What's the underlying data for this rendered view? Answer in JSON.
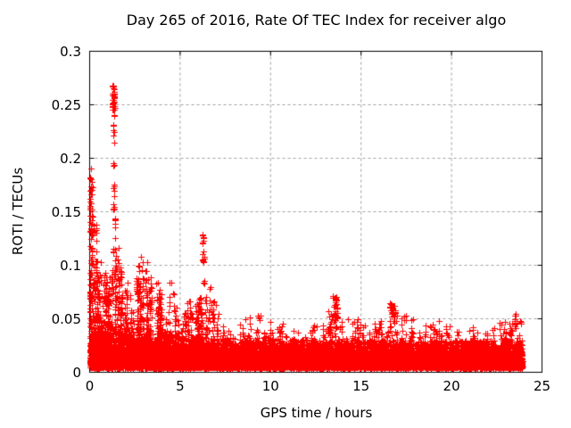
{
  "chart_data": {
    "type": "scatter",
    "title": "Day 265 of 2016, Rate Of TEC Index for receiver algo",
    "xlabel": "GPS time / hours",
    "ylabel": "ROTI / TECUs",
    "xlim": [
      0,
      25
    ],
    "ylim": [
      0,
      0.3
    ],
    "xticks": [
      0,
      5,
      10,
      15,
      20,
      25
    ],
    "xtick_labels": [
      "0",
      "5",
      "10",
      "15",
      "20",
      "25"
    ],
    "yticks": [
      0,
      0.05,
      0.1,
      0.15,
      0.2,
      0.25,
      0.3
    ],
    "ytick_labels": [
      "0",
      "0.05",
      "0.1",
      "0.15",
      "0.2",
      "0.25",
      "0.3"
    ],
    "grid": true,
    "legend": "none",
    "marker": "plus",
    "marker_size_px": 7,
    "colors": {
      "marker": "#ff0000",
      "grid": "#a0a0a0",
      "axis": "#000000",
      "text": "#000000",
      "background": "#ffffff"
    },
    "time_range_hours": [
      0,
      23.92
    ],
    "y_max_observed": 0.267,
    "seed": 1337,
    "n_background_points": 13500,
    "background_floor": {
      "y_min": 0.004,
      "mean_base": 0.0085,
      "mean_extra": 0.0075,
      "mean_decay_h": 2.5,
      "cap_base": 0.03,
      "cap_extra": 0.025,
      "cap_decay_h": 3
    },
    "spike_texture": {
      "bin_hours": 0.3,
      "probability": 0.9,
      "second_spike_probability": 0.5,
      "high_env_threshold": 0.07,
      "high_env_extra_probability": 0.85,
      "min_height_frac": 0.5,
      "points_per_unit": 300,
      "y_base": 0.015,
      "x_jitter": 0.05
    },
    "upper_envelope": [
      [
        0,
        0.2
      ],
      [
        0.15,
        0.2
      ],
      [
        0.3,
        0.16
      ],
      [
        0.6,
        0.11
      ],
      [
        0.8,
        0.095
      ],
      [
        1.0,
        0.1
      ],
      [
        1.2,
        0.12
      ],
      [
        1.5,
        0.12
      ],
      [
        1.7,
        0.115
      ],
      [
        2.0,
        0.105
      ],
      [
        2.3,
        0.09
      ],
      [
        2.6,
        0.1
      ],
      [
        2.9,
        0.11
      ],
      [
        3.1,
        0.115
      ],
      [
        3.3,
        0.1
      ],
      [
        3.6,
        0.085
      ],
      [
        3.9,
        0.095
      ],
      [
        4.2,
        0.09
      ],
      [
        4.5,
        0.105
      ],
      [
        4.8,
        0.09
      ],
      [
        5.1,
        0.085
      ],
      [
        5.4,
        0.08
      ],
      [
        5.7,
        0.072
      ],
      [
        6.0,
        0.07
      ],
      [
        6.4,
        0.095
      ],
      [
        6.7,
        0.08
      ],
      [
        7.0,
        0.065
      ],
      [
        7.4,
        0.055
      ],
      [
        7.8,
        0.048
      ],
      [
        8.2,
        0.045
      ],
      [
        8.6,
        0.05
      ],
      [
        9.0,
        0.055
      ],
      [
        9.5,
        0.055
      ],
      [
        10.0,
        0.05
      ],
      [
        10.5,
        0.045
      ],
      [
        11.0,
        0.047
      ],
      [
        11.5,
        0.045
      ],
      [
        12.0,
        0.048
      ],
      [
        12.5,
        0.052
      ],
      [
        13.0,
        0.055
      ],
      [
        13.4,
        0.06
      ],
      [
        13.8,
        0.055
      ],
      [
        14.2,
        0.055
      ],
      [
        14.6,
        0.05
      ],
      [
        15.0,
        0.05
      ],
      [
        15.5,
        0.052
      ],
      [
        16.0,
        0.052
      ],
      [
        16.5,
        0.06
      ],
      [
        17.0,
        0.058
      ],
      [
        17.5,
        0.052
      ],
      [
        18.0,
        0.05
      ],
      [
        18.5,
        0.052
      ],
      [
        19.0,
        0.052
      ],
      [
        19.5,
        0.047
      ],
      [
        20.0,
        0.05
      ],
      [
        20.5,
        0.048
      ],
      [
        21.0,
        0.047
      ],
      [
        21.5,
        0.044
      ],
      [
        22.0,
        0.042
      ],
      [
        22.5,
        0.044
      ],
      [
        23.0,
        0.05
      ],
      [
        23.5,
        0.052
      ],
      [
        23.92,
        0.05
      ]
    ],
    "outlier_clusters": [
      {
        "t": 0.1,
        "w": 0.15,
        "y_min": 0.1,
        "y_max": 0.2,
        "n": 22
      },
      {
        "t": 0.35,
        "w": 0.1,
        "y_min": 0.09,
        "y_max": 0.145,
        "n": 10
      },
      {
        "t": 1.32,
        "w": 0.14,
        "y_min": 0.245,
        "y_max": 0.268,
        "n": 30
      },
      {
        "t": 1.34,
        "w": 0.1,
        "y_min": 0.15,
        "y_max": 0.245,
        "n": 22
      },
      {
        "t": 1.36,
        "w": 0.1,
        "y_min": 0.125,
        "y_max": 0.152,
        "n": 6
      },
      {
        "t": 6.28,
        "w": 0.1,
        "y_min": 0.102,
        "y_max": 0.131,
        "n": 15
      },
      {
        "t": 6.32,
        "w": 0.04,
        "y_min": 0.082,
        "y_max": 0.086,
        "n": 3
      },
      {
        "t": 13.55,
        "w": 0.3,
        "y_min": 0.05,
        "y_max": 0.073,
        "n": 26
      },
      {
        "t": 16.7,
        "w": 0.28,
        "y_min": 0.046,
        "y_max": 0.065,
        "n": 20
      },
      {
        "t": 23.55,
        "w": 0.18,
        "y_min": 0.04,
        "y_max": 0.056,
        "n": 12
      }
    ]
  }
}
